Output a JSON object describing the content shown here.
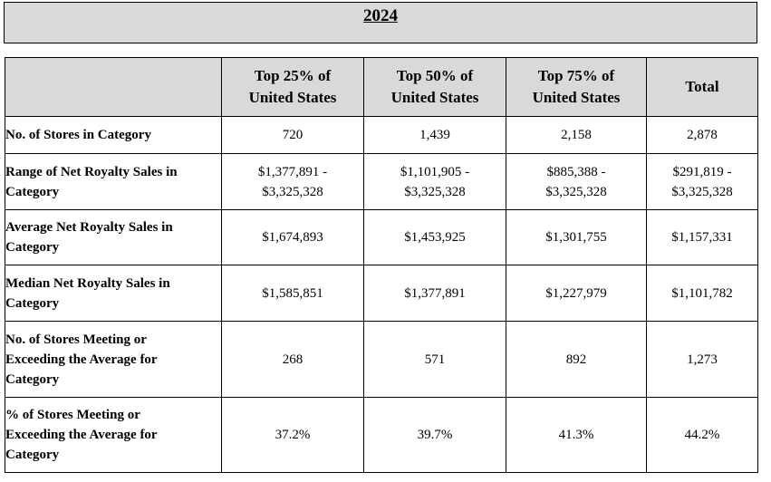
{
  "year": "2024",
  "columns": [
    [
      "Top 25% of",
      "United States"
    ],
    [
      "Top 50% of",
      "United States"
    ],
    [
      "Top 75% of",
      "United States"
    ],
    [
      "Total"
    ]
  ],
  "rows": [
    {
      "label": [
        "No. of Stores in Category"
      ],
      "values": [
        [
          "720"
        ],
        [
          "1,439"
        ],
        [
          "2,158"
        ],
        [
          "2,878"
        ]
      ]
    },
    {
      "label": [
        "Range of Net Royalty Sales in",
        "Category"
      ],
      "values": [
        [
          "$1,377,891 -",
          "$3,325,328"
        ],
        [
          "$1,101,905 -",
          "$3,325,328"
        ],
        [
          "$885,388 -",
          "$3,325,328"
        ],
        [
          "$291,819 -",
          "$3,325,328"
        ]
      ]
    },
    {
      "label": [
        "Average Net Royalty Sales in",
        "Category"
      ],
      "values": [
        [
          "$1,674,893"
        ],
        [
          "$1,453,925"
        ],
        [
          "$1,301,755"
        ],
        [
          "$1,157,331"
        ]
      ]
    },
    {
      "label": [
        "Median Net Royalty Sales in",
        "Category"
      ],
      "values": [
        [
          "$1,585,851"
        ],
        [
          "$1,377,891"
        ],
        [
          "$1,227,979"
        ],
        [
          "$1,101,782"
        ]
      ]
    },
    {
      "label": [
        "No. of Stores Meeting or",
        "Exceeding the Average for",
        "Category"
      ],
      "values": [
        [
          "268"
        ],
        [
          "571"
        ],
        [
          "892"
        ],
        [
          "1,273"
        ]
      ]
    },
    {
      "label": [
        "% of Stores Meeting or",
        "Exceeding the Average for",
        "Category"
      ],
      "values": [
        [
          "37.2%"
        ],
        [
          "39.7%"
        ],
        [
          "41.3%"
        ],
        [
          "44.2%"
        ]
      ]
    }
  ]
}
